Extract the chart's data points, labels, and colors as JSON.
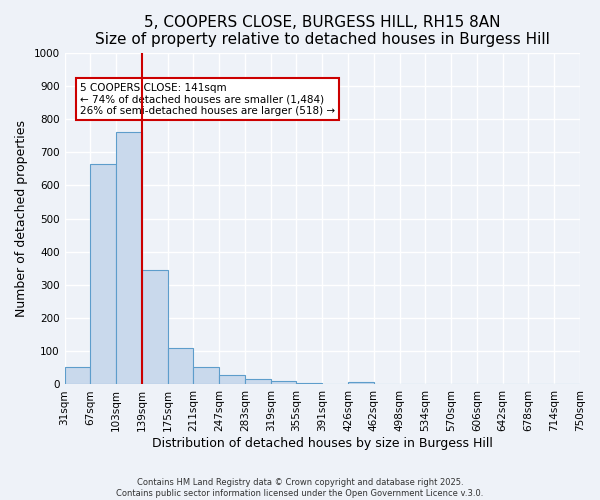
{
  "title1": "5, COOPERS CLOSE, BURGESS HILL, RH15 8AN",
  "title2": "Size of property relative to detached houses in Burgess Hill",
  "xlabel": "Distribution of detached houses by size in Burgess Hill",
  "ylabel": "Number of detached properties",
  "bin_labels": [
    "31sqm",
    "67sqm",
    "103sqm",
    "139sqm",
    "175sqm",
    "211sqm",
    "247sqm",
    "283sqm",
    "319sqm",
    "355sqm",
    "391sqm",
    "426sqm",
    "462sqm",
    "498sqm",
    "534sqm",
    "570sqm",
    "606sqm",
    "642sqm",
    "678sqm",
    "714sqm",
    "750sqm"
  ],
  "bar_values": [
    52,
    665,
    760,
    345,
    110,
    52,
    28,
    15,
    10,
    5,
    0,
    8,
    0,
    0,
    0,
    0,
    0,
    0,
    0,
    0
  ],
  "bar_color": "#c9d9ec",
  "bar_edge_color": "#5d9dcb",
  "red_line_index": 3,
  "red_line_color": "#cc0000",
  "annotation_text": "5 COOPERS CLOSE: 141sqm\n← 74% of detached houses are smaller (1,484)\n26% of semi-detached houses are larger (518) →",
  "annotation_box_color": "#ffffff",
  "annotation_box_edge_color": "#cc0000",
  "ylim": [
    0,
    1000
  ],
  "yticks": [
    0,
    100,
    200,
    300,
    400,
    500,
    600,
    700,
    800,
    900,
    1000
  ],
  "background_color": "#eef2f8",
  "plot_background_color": "#eef2f8",
  "grid_color": "#ffffff",
  "title_fontsize": 11,
  "axis_label_fontsize": 9,
  "tick_fontsize": 7.5,
  "footer_text": "Contains HM Land Registry data © Crown copyright and database right 2025.\nContains public sector information licensed under the Open Government Licence v.3.0."
}
